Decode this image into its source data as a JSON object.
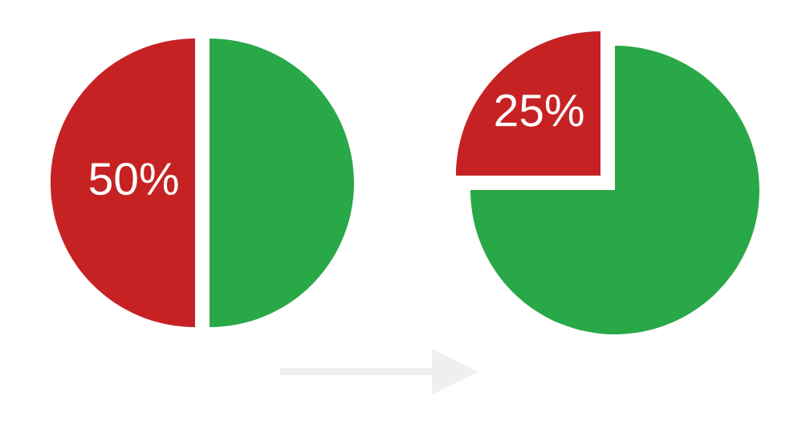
{
  "chart_data": [
    {
      "type": "pie",
      "categories": [
        null,
        null
      ],
      "values": [
        50,
        50
      ],
      "colors": [
        "#c62224",
        "#29a847"
      ],
      "value_labels": [
        "50%",
        null
      ]
    },
    {
      "type": "pie",
      "categories": [
        null,
        null
      ],
      "values": [
        25,
        75
      ],
      "colors": [
        "#c62224",
        "#29a847"
      ],
      "value_labels": [
        "25%",
        null
      ]
    }
  ]
}
